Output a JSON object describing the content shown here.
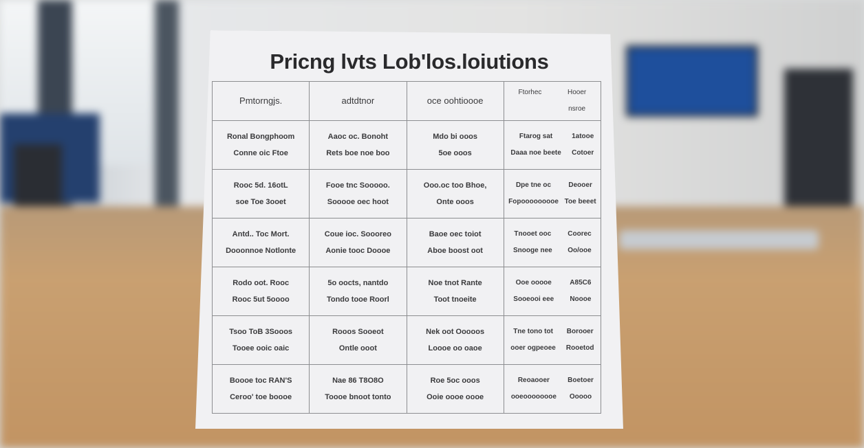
{
  "sign": {
    "title": "Pricng lvts Lob'los.loiutions",
    "header": [
      {
        "lines": [
          "Pmtorngjs."
        ]
      },
      {
        "lines": [
          "adtdtnor"
        ]
      },
      {
        "lines": [
          "oce oohtioooe"
        ]
      },
      {
        "left": [
          "Ftorhec"
        ],
        "right": [
          "Hooer",
          "nsroe"
        ]
      }
    ],
    "rows": [
      [
        {
          "lines": [
            "Ronal Bongphoom",
            "Conne oic Ftoe"
          ]
        },
        {
          "lines": [
            "Aaoc oc.  Bonoht",
            "Rets boe noe boo"
          ]
        },
        {
          "lines": [
            "Mdo bi ooos",
            "5oe ooos"
          ]
        },
        {
          "left": [
            "Ftarog sat",
            "Daaa noe beete"
          ],
          "right": [
            "1atooe",
            "Cotoer"
          ]
        }
      ],
      [
        {
          "lines": [
            "Rooc 5d.  16otL",
            "soe Toe 3ooet"
          ]
        },
        {
          "lines": [
            "Fooe tnc Sooooo.",
            "Sooooe oec hoot"
          ]
        },
        {
          "lines": [
            "Ooo.oc too Bhoe,",
            "Onte ooos"
          ]
        },
        {
          "left": [
            "Dpe tne oc",
            "Fopooooooooe"
          ],
          "right": [
            "Deooer",
            "Toe beeet"
          ]
        }
      ],
      [
        {
          "lines": [
            "Antd.. Toc Mort.",
            "Dooonnoe Notlonte"
          ]
        },
        {
          "lines": [
            "Coue ioc. Soooreo",
            "Aonie tooc Doooe"
          ]
        },
        {
          "lines": [
            "Baoe oec toiot",
            "Aboe boost oot"
          ]
        },
        {
          "left": [
            "Tnooet ooc",
            "Snooge nee"
          ],
          "right": [
            "Coorec",
            "Oo/ooe"
          ]
        }
      ],
      [
        {
          "lines": [
            "Rodo oot. Rooc",
            "Rooc 5ut 5oooo"
          ]
        },
        {
          "lines": [
            "5o oocts, nantdo",
            "Tondo tooe Roorl"
          ]
        },
        {
          "lines": [
            "Noe tnot Rante",
            "Toot tnoeite"
          ]
        },
        {
          "left": [
            "Ooe ooooe",
            "Sooeooi eee"
          ],
          "right": [
            "A85C6",
            "Noooe"
          ]
        }
      ],
      [
        {
          "lines": [
            "Tsoo ToB 3Sooos",
            "Tooee ooic oaic"
          ]
        },
        {
          "lines": [
            "Rooos Sooeot",
            "Ontle ooot"
          ]
        },
        {
          "lines": [
            "Nek oot Ooooos",
            "Loooe oo oaoe"
          ]
        },
        {
          "left": [
            "Tne tono tot",
            "ooer ogpeoee"
          ],
          "right": [
            "Borooer",
            "Rooetod"
          ]
        }
      ],
      [
        {
          "lines": [
            "Boooe toc RAN'S",
            "Ceroo' toe boooe"
          ]
        },
        {
          "lines": [
            "Nae 86 T8O8O",
            "Toooe bnoot tonto"
          ]
        },
        {
          "lines": [
            "Roe 5oc ooos",
            "Ooie oooe oooe"
          ]
        },
        {
          "left": [
            "Reoaooer",
            "ooeoooooooe"
          ],
          "right": [
            "Boetoer",
            "Ooooo"
          ]
        }
      ]
    ]
  },
  "colors": {
    "desk": "#c49a6c",
    "paper": "#f1f1f3",
    "monitor": "#2b4f8e"
  }
}
